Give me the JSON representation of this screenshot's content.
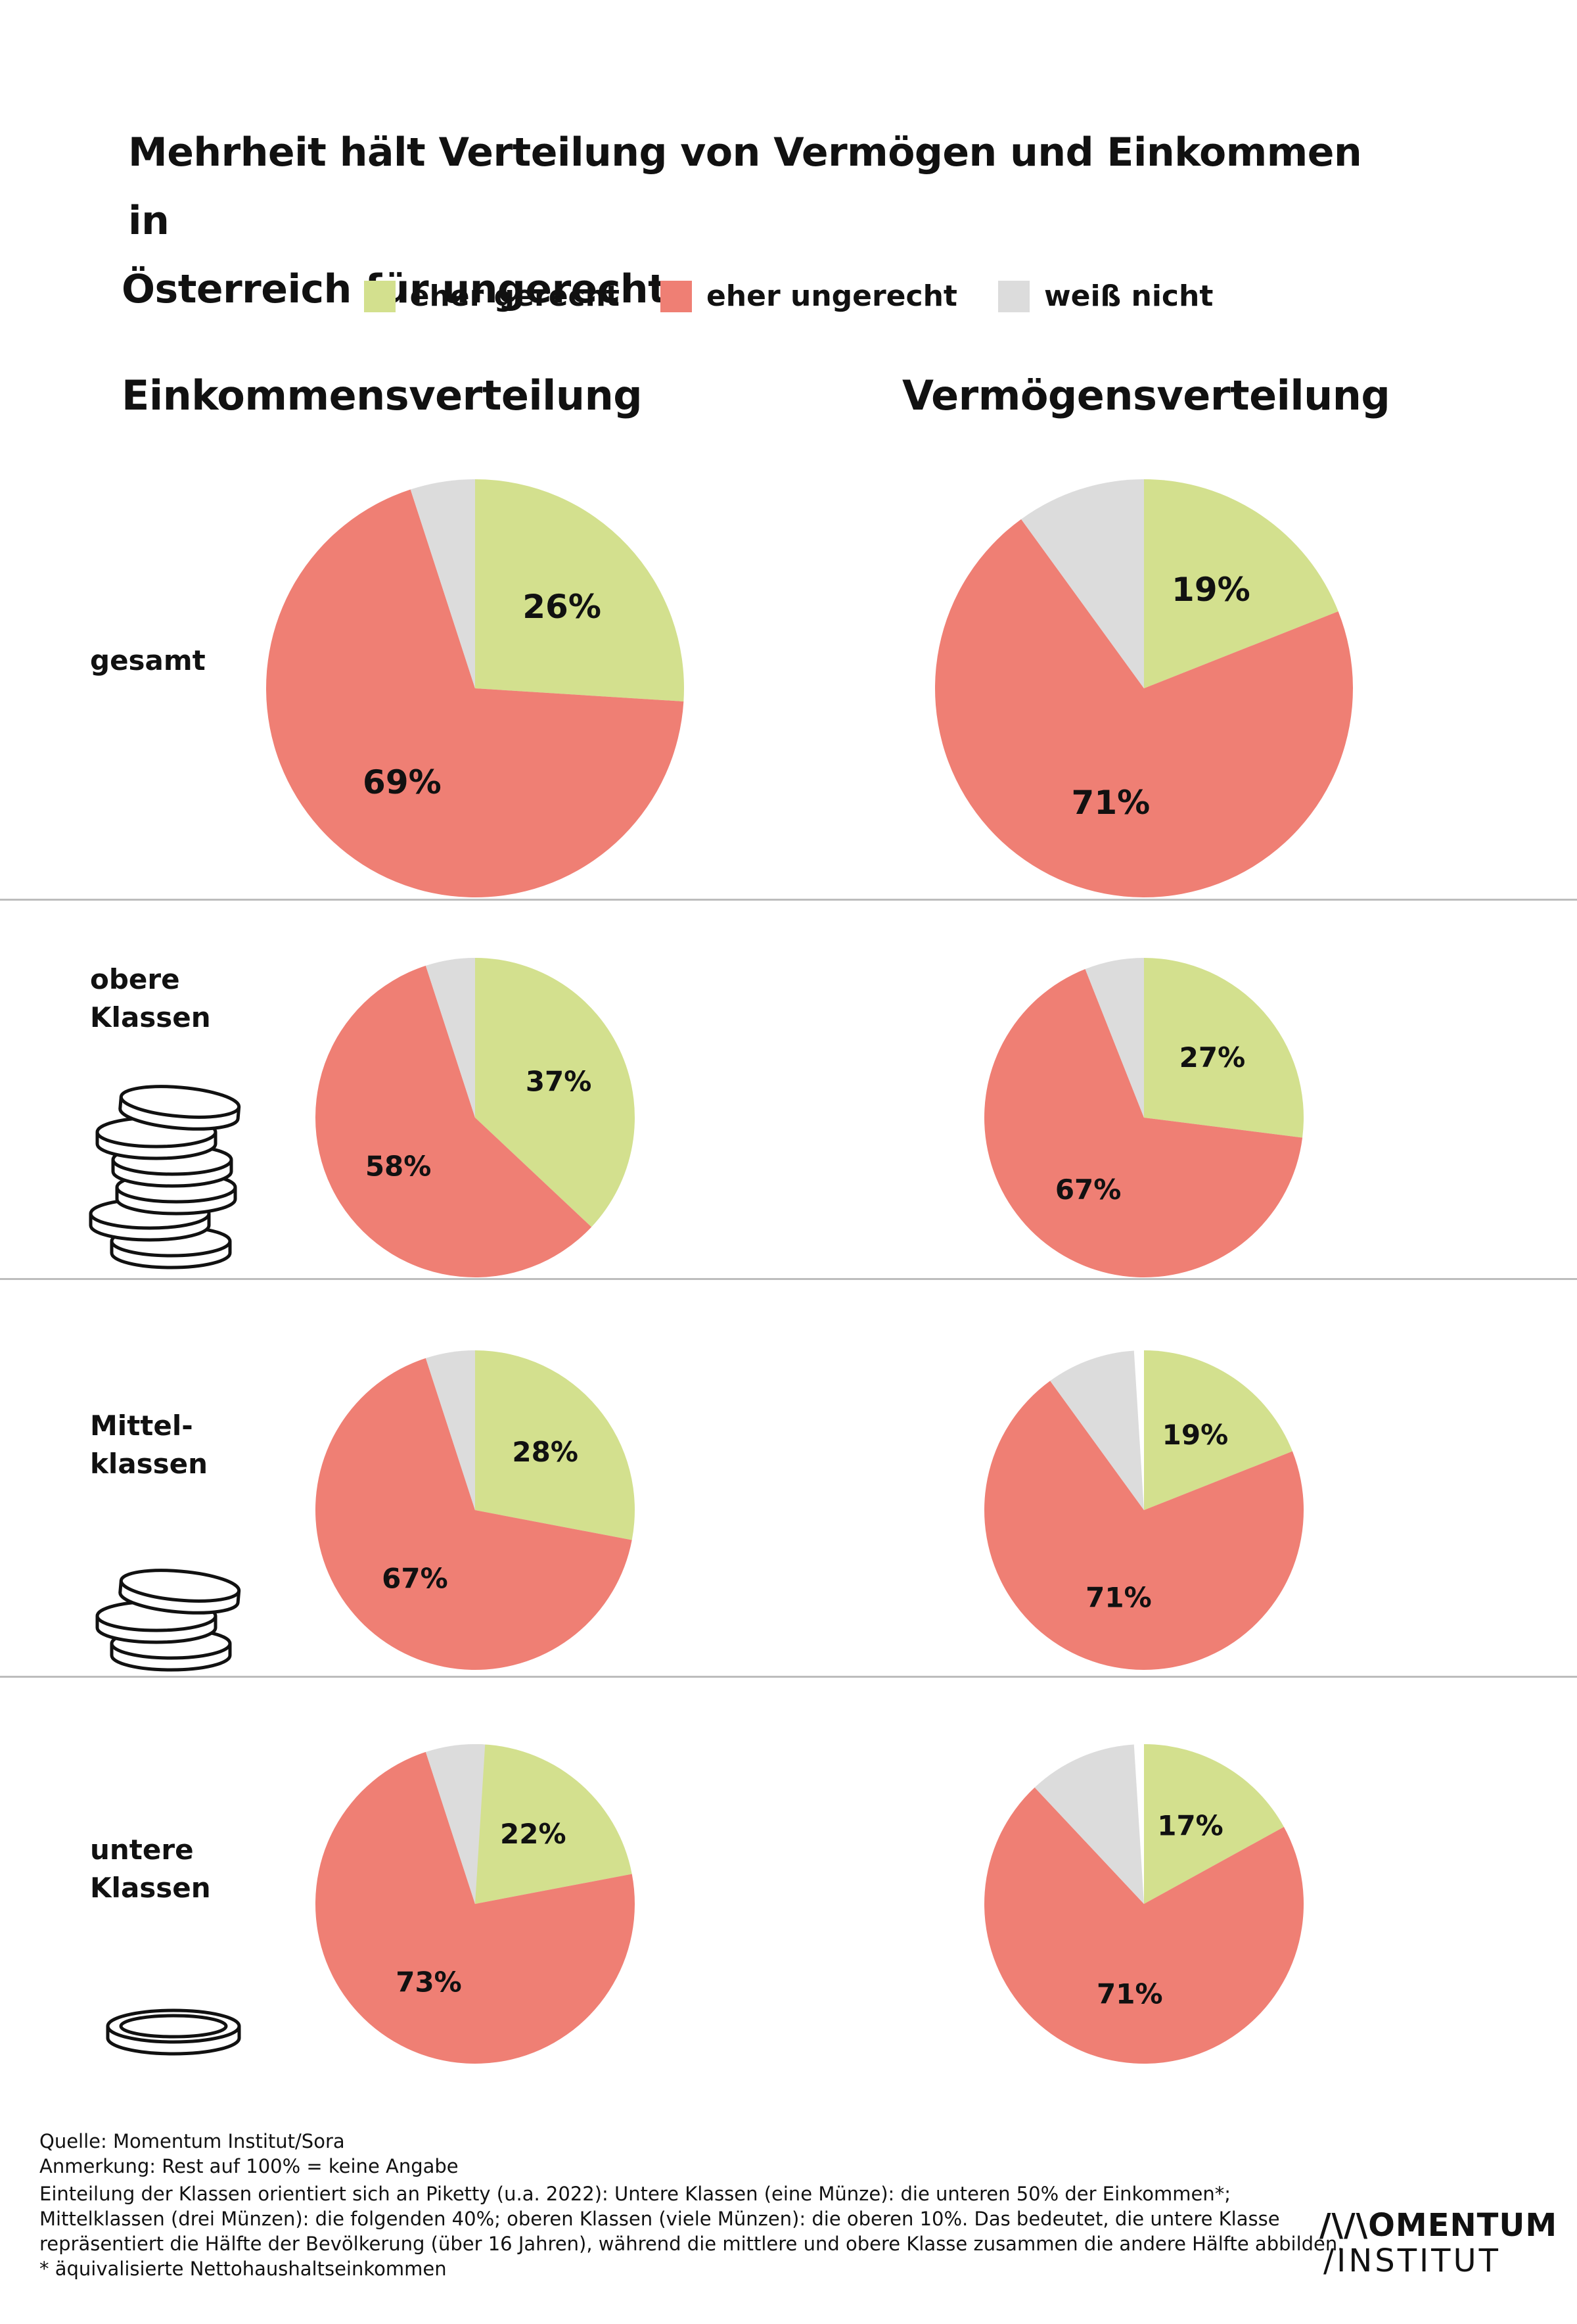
{
  "title_line1": "Mehrheit hält Verteilung von Vermögen und Einkommen in",
  "title_line2": "Österreich für ungerecht",
  "legend": [
    {
      "label": "eher gerecht",
      "color": "#d3e08e"
    },
    {
      "label": "eher ungerecht",
      "color": "#ef7f74"
    },
    {
      "label": "weiß nicht",
      "color": "#dcdcdc"
    }
  ],
  "columns": {
    "left": "Einkommensverteilung",
    "right": "Vermögensverteilung"
  },
  "rows": [
    {
      "label_line1": "gesamt",
      "label_line2": ""
    },
    {
      "label_line1": "obere",
      "label_line2": "Klassen"
    },
    {
      "label_line1": "Mittel-",
      "label_line2": "klassen"
    },
    {
      "label_line1": "untere",
      "label_line2": "Klassen"
    }
  ],
  "chart_data": [
    {
      "type": "pie",
      "title": "Einkommensverteilung – gesamt",
      "labels": [
        "eher gerecht",
        "eher ungerecht",
        "weiß nicht"
      ],
      "values": [
        26,
        69,
        5
      ],
      "value_labels": [
        "26%",
        "69%",
        ""
      ]
    },
    {
      "type": "pie",
      "title": "Vermögensverteilung – gesamt",
      "labels": [
        "eher gerecht",
        "eher ungerecht",
        "weiß nicht"
      ],
      "values": [
        19,
        71,
        10
      ],
      "value_labels": [
        "19%",
        "71%",
        ""
      ]
    },
    {
      "type": "pie",
      "title": "Einkommensverteilung – obere Klassen",
      "labels": [
        "eher gerecht",
        "eher ungerecht",
        "weiß nicht"
      ],
      "values": [
        37,
        58,
        5
      ],
      "value_labels": [
        "37%",
        "58%",
        ""
      ]
    },
    {
      "type": "pie",
      "title": "Vermögensverteilung – obere Klassen",
      "labels": [
        "eher gerecht",
        "eher ungerecht",
        "weiß nicht"
      ],
      "values": [
        27,
        67,
        6
      ],
      "value_labels": [
        "27%",
        "67%",
        ""
      ]
    },
    {
      "type": "pie",
      "title": "Einkommensverteilung – Mittelklassen",
      "labels": [
        "eher gerecht",
        "eher ungerecht",
        "weiß nicht"
      ],
      "values": [
        28,
        67,
        5
      ],
      "value_labels": [
        "28%",
        "67%",
        ""
      ]
    },
    {
      "type": "pie",
      "title": "Vermögensverteilung – Mittelklassen",
      "labels": [
        "eher gerecht",
        "eher ungerecht",
        "weiß nicht"
      ],
      "values": [
        19,
        71,
        9
      ],
      "value_labels": [
        "19%",
        "71%",
        ""
      ]
    },
    {
      "type": "pie",
      "title": "Einkommensverteilung – untere Klassen",
      "labels": [
        "eher gerecht",
        "eher ungerecht",
        "weiß nicht"
      ],
      "values": [
        22,
        73,
        6
      ],
      "value_labels": [
        "22%",
        "73%",
        ""
      ]
    },
    {
      "type": "pie",
      "title": "Vermögensverteilung – untere Klassen",
      "labels": [
        "eher gerecht",
        "eher ungerecht",
        "weiß nicht"
      ],
      "values": [
        17,
        71,
        11
      ],
      "value_labels": [
        "17%",
        "71%",
        ""
      ]
    }
  ],
  "footnotes": {
    "source": "Quelle: Momentum Institut/Sora",
    "note": "Anmerkung: Rest auf 100% = keine Angabe",
    "line1": "Einteilung der Klassen orientiert sich an Piketty (u.a. 2022): Untere Klassen (eine Münze): die unteren 50% der Einkommen*;",
    "line2": "Mittelklassen (drei Münzen): die folgenden 40%; oberen Klassen (viele Münzen): die oberen 10%. Das bedeutet, die untere Klasse",
    "line3": "repräsentiert die Hälfte der Bevölkerung (über 16 Jahren), während die mittlere und obere Klasse zusammen die andere Hälfte abbilden.",
    "line4": "* äquivalisierte Nettohaushaltseinkommen"
  },
  "logo": {
    "top": "/\\/\\OMENTUM",
    "bottom": "/INSTITUT"
  },
  "colors": {
    "gerecht": "#d3e08e",
    "ungerecht": "#ef7f74",
    "weiss_nicht": "#dcdcdc",
    "divider": "#bdbdbd"
  }
}
